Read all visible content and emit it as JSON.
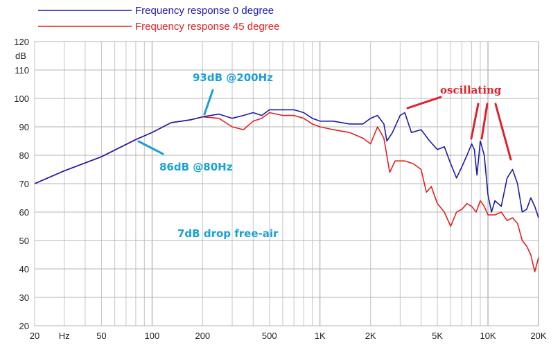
{
  "chart_data": {
    "type": "line",
    "xscale": "log",
    "xlim": [
      20,
      20000
    ],
    "ylim": [
      20,
      120
    ],
    "ylabel": "dB",
    "grid": true,
    "legend_placement": "top-left",
    "x_tick_labels": [
      {
        "value": 20,
        "label": "20"
      },
      {
        "value": 30,
        "label": "Hz"
      },
      {
        "value": 50,
        "label": "50"
      },
      {
        "value": 100,
        "label": "100"
      },
      {
        "value": 200,
        "label": "200"
      },
      {
        "value": 500,
        "label": "500"
      },
      {
        "value": 1000,
        "label": "1K"
      },
      {
        "value": 2000,
        "label": "2K"
      },
      {
        "value": 5000,
        "label": "5K"
      },
      {
        "value": 10000,
        "label": "10K"
      },
      {
        "value": 20000,
        "label": "20K"
      }
    ],
    "y_ticks": [
      20,
      30,
      40,
      50,
      60,
      70,
      80,
      90,
      100,
      110,
      120
    ],
    "series": [
      {
        "name": "Frequency response 0 degree",
        "color": "#1a1aa8",
        "points": [
          [
            20,
            70
          ],
          [
            30,
            74.5
          ],
          [
            50,
            79.5
          ],
          [
            80,
            85.5
          ],
          [
            100,
            88
          ],
          [
            130,
            91.5
          ],
          [
            150,
            92
          ],
          [
            170,
            92.5
          ],
          [
            200,
            93.5
          ],
          [
            250,
            94.5
          ],
          [
            300,
            93
          ],
          [
            350,
            94
          ],
          [
            400,
            95
          ],
          [
            450,
            94
          ],
          [
            500,
            96
          ],
          [
            600,
            96
          ],
          [
            700,
            96
          ],
          [
            800,
            95
          ],
          [
            900,
            93
          ],
          [
            1000,
            92
          ],
          [
            1200,
            92
          ],
          [
            1500,
            91
          ],
          [
            1800,
            91
          ],
          [
            2000,
            93
          ],
          [
            2200,
            94
          ],
          [
            2400,
            91
          ],
          [
            2500,
            85
          ],
          [
            2700,
            88
          ],
          [
            3000,
            94
          ],
          [
            3200,
            95
          ],
          [
            3500,
            88
          ],
          [
            4000,
            89
          ],
          [
            4500,
            85
          ],
          [
            5000,
            82
          ],
          [
            5500,
            83
          ],
          [
            6000,
            77
          ],
          [
            6500,
            72
          ],
          [
            7000,
            76
          ],
          [
            7500,
            80
          ],
          [
            8000,
            84
          ],
          [
            8300,
            82
          ],
          [
            8600,
            73
          ],
          [
            9000,
            85
          ],
          [
            9500,
            80
          ],
          [
            10000,
            66
          ],
          [
            10500,
            60
          ],
          [
            11000,
            64
          ],
          [
            12000,
            62
          ],
          [
            13000,
            72
          ],
          [
            14000,
            75
          ],
          [
            15000,
            70
          ],
          [
            16000,
            60
          ],
          [
            17000,
            61
          ],
          [
            18000,
            65
          ],
          [
            19000,
            62
          ],
          [
            20000,
            58
          ]
        ]
      },
      {
        "name": "Frequency response 45 degree",
        "color": "#e02020",
        "points": [
          [
            20,
            70
          ],
          [
            30,
            74.5
          ],
          [
            50,
            79.5
          ],
          [
            80,
            85.5
          ],
          [
            100,
            88
          ],
          [
            130,
            91.5
          ],
          [
            150,
            92
          ],
          [
            170,
            92.5
          ],
          [
            200,
            93.5
          ],
          [
            250,
            93
          ],
          [
            300,
            90
          ],
          [
            350,
            89
          ],
          [
            400,
            92
          ],
          [
            450,
            93
          ],
          [
            500,
            95
          ],
          [
            600,
            94
          ],
          [
            700,
            94
          ],
          [
            800,
            93
          ],
          [
            900,
            91
          ],
          [
            1000,
            90
          ],
          [
            1200,
            89
          ],
          [
            1500,
            88
          ],
          [
            1800,
            86
          ],
          [
            2000,
            84
          ],
          [
            2200,
            90
          ],
          [
            2400,
            86
          ],
          [
            2600,
            74
          ],
          [
            2800,
            78
          ],
          [
            3200,
            78
          ],
          [
            3600,
            77
          ],
          [
            4000,
            75
          ],
          [
            4300,
            67
          ],
          [
            4600,
            69
          ],
          [
            5000,
            63
          ],
          [
            5500,
            60
          ],
          [
            6000,
            55
          ],
          [
            6500,
            60
          ],
          [
            7000,
            61
          ],
          [
            7500,
            63
          ],
          [
            8000,
            62
          ],
          [
            8500,
            60
          ],
          [
            9000,
            64
          ],
          [
            9500,
            62
          ],
          [
            10000,
            59
          ],
          [
            11000,
            59
          ],
          [
            12000,
            60
          ],
          [
            13000,
            57
          ],
          [
            14000,
            58
          ],
          [
            15000,
            56
          ],
          [
            16000,
            50
          ],
          [
            17000,
            48
          ],
          [
            18000,
            45
          ],
          [
            19000,
            39
          ],
          [
            20000,
            44
          ]
        ]
      }
    ],
    "annotations": [
      {
        "text": "93dB @200Hz",
        "color": "#1aa0d6"
      },
      {
        "text": "86dB @80Hz",
        "color": "#1aa0d6"
      },
      {
        "text": "7dB drop free-air",
        "color": "#1aa0d6"
      },
      {
        "text": "oscillating",
        "color": "#e0202a"
      }
    ]
  }
}
